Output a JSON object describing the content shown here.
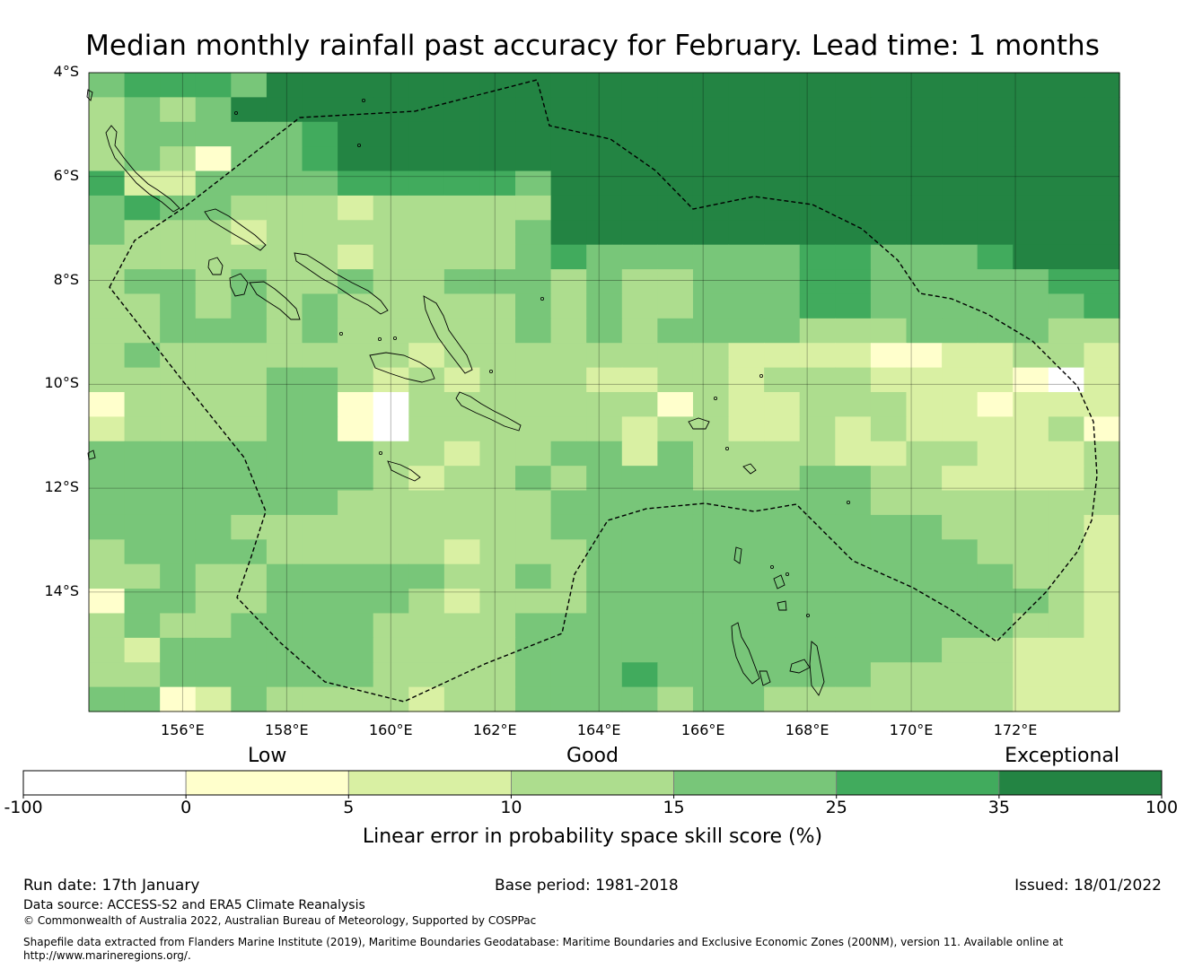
{
  "title": "Median monthly rainfall past accuracy for February. Lead time: 1 months",
  "map": {
    "lat_range": [
      -4,
      -16.3
    ],
    "lon_range": [
      154.2,
      174
    ],
    "lat_ticks": [
      "4°S",
      "6°S",
      "8°S",
      "10°S",
      "12°S",
      "14°S"
    ],
    "lon_ticks": [
      "156°E",
      "158°E",
      "160°E",
      "162°E",
      "164°E",
      "166°E",
      "168°E",
      "170°E",
      "172°E"
    ],
    "grid_codes": [
      "45554666666666666666666666666",
      "34346666666666666666666666666",
      "34444456666666666666666666666",
      "34314456666666666666666666666",
      "52244445555546666666666666666",
      "45443332333336666666666666666",
      "43332333333346666666666666666",
      "33333332333345444444554445666",
      "34434334334443433444554444455",
      "33434343333343433444554444445",
      "33444343333343434444333444433",
      "34333333323333333322221122332",
      "33333443232333223323332222102",
      "13333441033333331322333221222",
      "23333441033333323322323222231",
      "44444444332334424333322332223",
      "44444444323343444333443322223",
      "44444443333334444444443333333",
      "44443333333334444444444433332",
      "34444333332333444444444443332",
      "33433444443343444444444444332",
      "14433444432333444444444444432",
      "34334444333344444444444444332",
      "32444444333344444444444433222",
      "33444444333344454444443333222",
      "44124333323344443443333333222"
    ],
    "colors": {
      "0": "#ffffff",
      "1": "#ffffcc",
      "2": "#d9f0a3",
      "3": "#addd8e",
      "4": "#78c679",
      "5": "#41ab5d",
      "6": "#238443"
    }
  },
  "colorbar": {
    "ticks": [
      "-100",
      "0",
      "5",
      "10",
      "15",
      "25",
      "35",
      "100"
    ],
    "colors": [
      "#ffffff",
      "#ffffcc",
      "#d9f0a3",
      "#addd8e",
      "#78c679",
      "#41ab5d",
      "#238443"
    ],
    "categories": [
      "Low",
      "Good",
      "Exceptional"
    ],
    "title": "Linear error in probability space skill score (%)"
  },
  "footer": {
    "run_date": "Run date: 17th January",
    "base_period": "Base period: 1981-2018",
    "issued": "Issued: 18/01/2022",
    "data_source": "Data source: ACCESS-S2 and ERA5 Climate Reanalysis",
    "copyright": "© Commonwealth of Australia 2022, Australian Bureau of Meteorology, Supported by COSPPac",
    "shapefile_line1": "Shapefile data extracted from Flanders Marine Institute (2019), Maritime Boundaries Geodatabase: Maritime Boundaries and Exclusive Economic Zones (200NM), version 11. Available online at",
    "shapefile_line2": "http://www.marineregions.org/."
  }
}
